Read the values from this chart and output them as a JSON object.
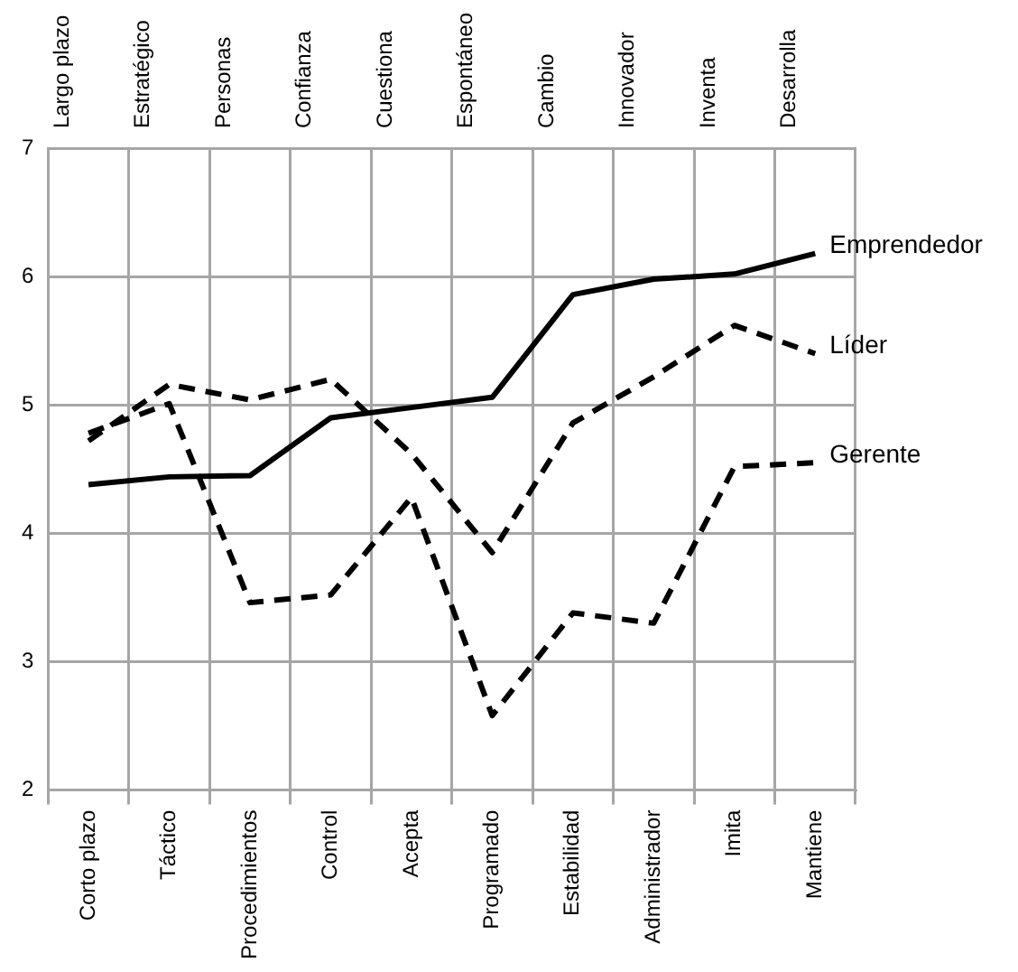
{
  "chart_data": {
    "type": "line",
    "categories": [
      "Corto plazo",
      "Táctico",
      "Procedimientos",
      "Control",
      "Acepta",
      "Programado",
      "Estabilidad",
      "Administrador",
      "Imita",
      "Mantiene"
    ],
    "annotations": [
      "Largo plazo",
      "Estratégico",
      "Personas",
      "Confianza",
      "Cuestiona",
      "Espontáneo",
      "Cambio",
      "Innovador",
      "Inventa",
      "Desarrolla"
    ],
    "series": [
      {
        "name": "Emprendedor",
        "color": "#000000",
        "line_style": "solid",
        "values": [
          4.38,
          4.44,
          4.45,
          4.9,
          4.98,
          5.06,
          5.86,
          5.98,
          6.02,
          6.18
        ]
      },
      {
        "name": "Líder",
        "color": "#000000",
        "line_style": "dashed",
        "values": [
          4.72,
          5.16,
          5.04,
          5.2,
          4.62,
          3.85,
          4.86,
          5.22,
          5.62,
          5.4
        ]
      },
      {
        "name": "Gerente",
        "color": "#000000",
        "line_style": "dashed",
        "values": [
          4.78,
          5.01,
          3.46,
          3.52,
          4.28,
          2.58,
          3.38,
          3.3,
          4.52,
          4.55
        ]
      }
    ],
    "ylim": [
      2,
      7
    ],
    "yticks": [
      2,
      3,
      4,
      5,
      6,
      7
    ],
    "grid": true,
    "legend": false,
    "marker": "none"
  }
}
